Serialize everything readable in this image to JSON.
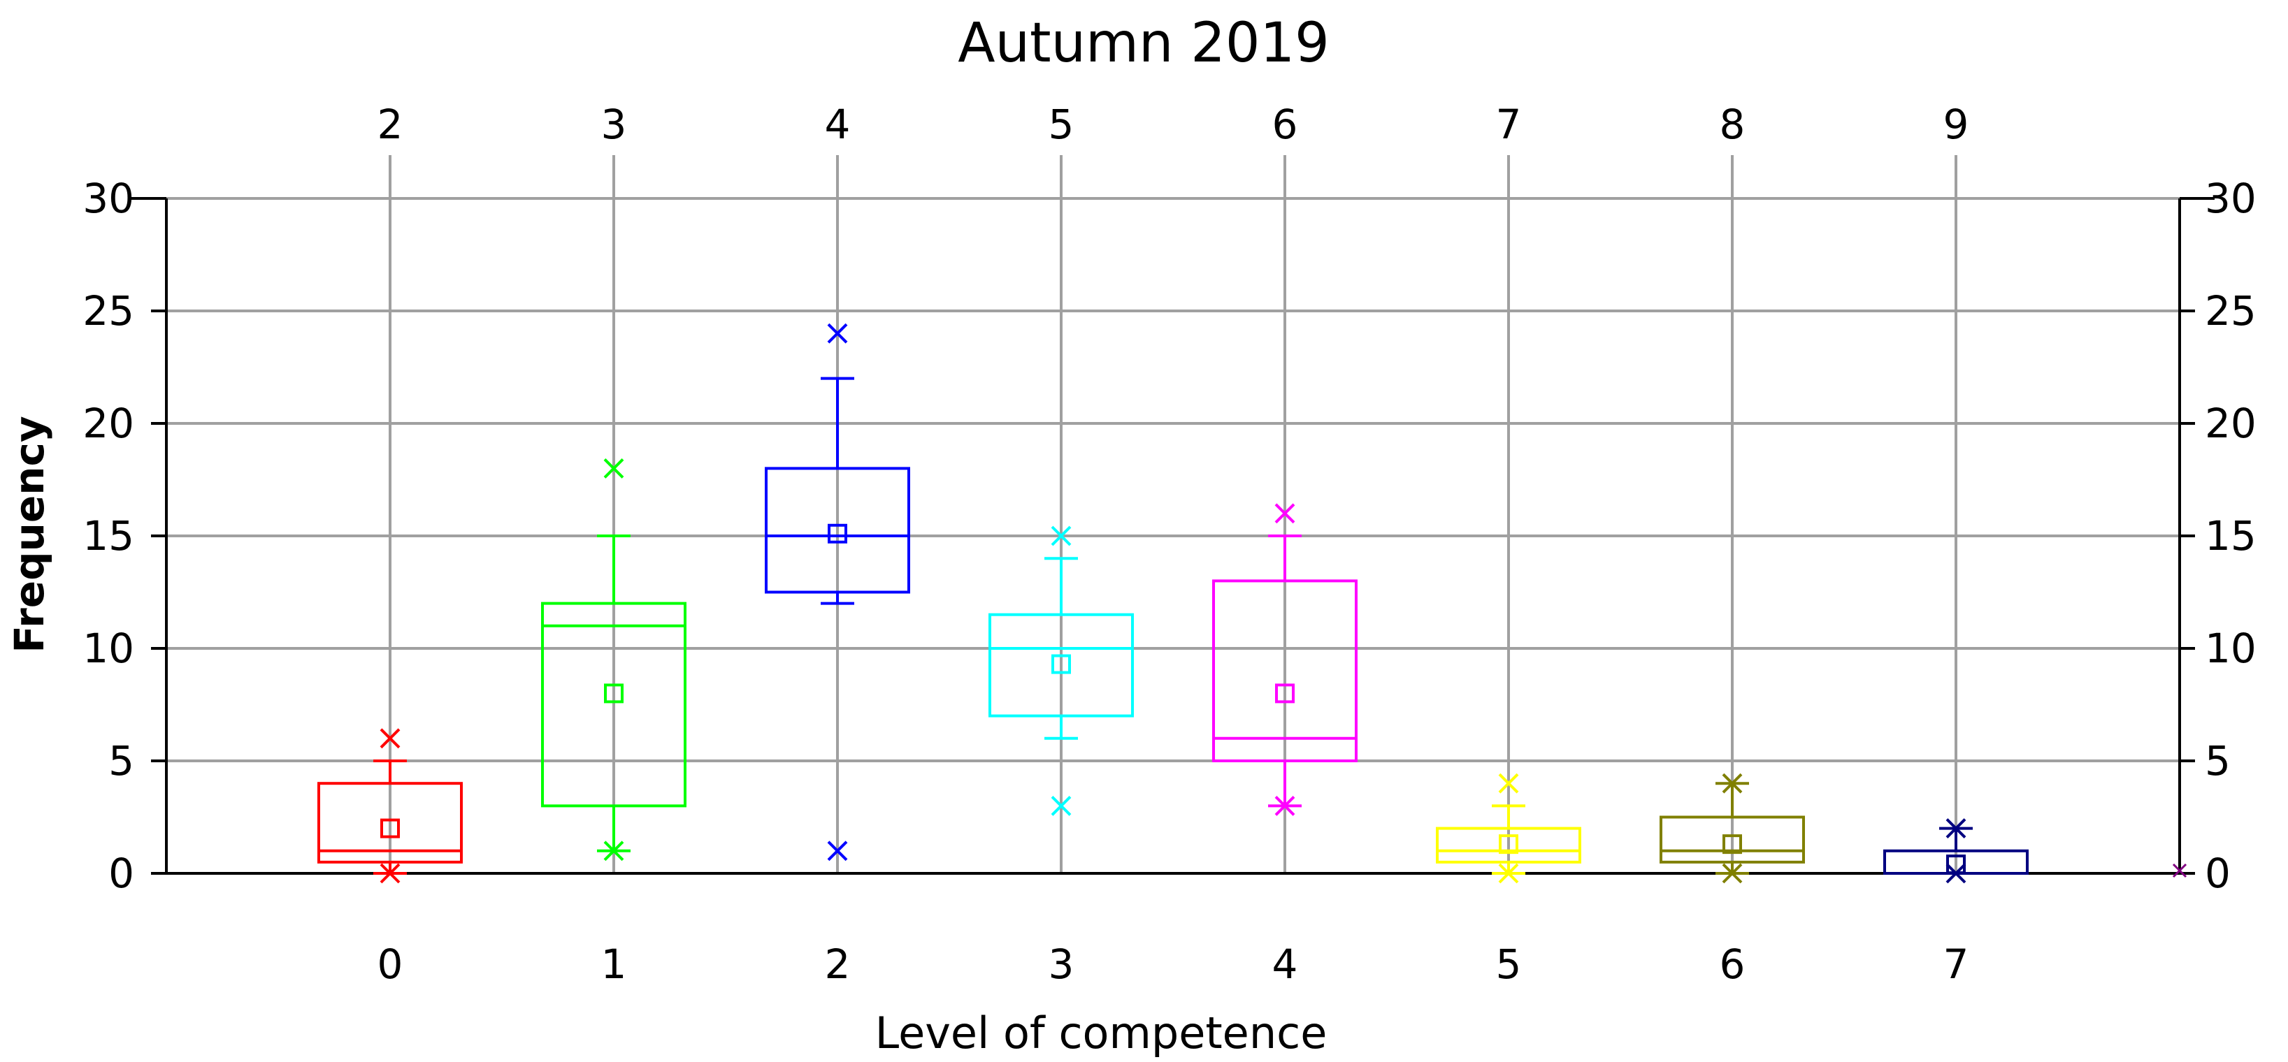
{
  "chart_data": {
    "type": "box",
    "title": "Autumn 2019",
    "xlabel": "Level of competence",
    "ylabel": "Frequency",
    "ylim": [
      0,
      30
    ],
    "xlim": [
      -1,
      8
    ],
    "yticks": [
      0,
      5,
      10,
      15,
      20,
      25,
      30
    ],
    "xticks_bottom": [
      "0",
      "1",
      "2",
      "3",
      "4",
      "5",
      "6",
      "7"
    ],
    "xticks_top": [
      "2",
      "3",
      "4",
      "5",
      "6",
      "7",
      "8",
      "9"
    ],
    "grid": true,
    "boxes": [
      {
        "x": 0,
        "color": "#ff0000",
        "q1": 0.5,
        "median": 1,
        "q3": 4,
        "whisker_low": 0,
        "whisker_high": 5,
        "mean": 2,
        "min": 0,
        "max": 6
      },
      {
        "x": 1,
        "color": "#00ff00",
        "q1": 3,
        "median": 11,
        "q3": 12,
        "whisker_low": 1,
        "whisker_high": 15,
        "mean": 8,
        "min": 1,
        "max": 18
      },
      {
        "x": 2,
        "color": "#0000ff",
        "q1": 12.5,
        "median": 15,
        "q3": 18,
        "whisker_low": 12,
        "whisker_high": 22,
        "mean": 15.1,
        "min": 1,
        "max": 24
      },
      {
        "x": 3,
        "color": "#00ffff",
        "q1": 7,
        "median": 10,
        "q3": 11.5,
        "whisker_low": 6,
        "whisker_high": 14,
        "mean": 9.3,
        "min": 3,
        "max": 15
      },
      {
        "x": 4,
        "color": "#ff00ff",
        "q1": 5,
        "median": 6,
        "q3": 13,
        "whisker_low": 3,
        "whisker_high": 15,
        "mean": 8,
        "min": 3,
        "max": 16
      },
      {
        "x": 5,
        "color": "#ffff00",
        "q1": 0.5,
        "median": 1,
        "q3": 2,
        "whisker_low": 0,
        "whisker_high": 3,
        "mean": 1.3,
        "min": 0,
        "max": 4
      },
      {
        "x": 6,
        "color": "#808000",
        "q1": 0.5,
        "median": 1,
        "q3": 2.5,
        "whisker_low": 0,
        "whisker_high": 4,
        "mean": 1.3,
        "min": 0,
        "max": 4
      },
      {
        "x": 7,
        "color": "#000080",
        "q1": 0,
        "median": 0,
        "q3": 1,
        "whisker_low": 0,
        "whisker_high": 2,
        "mean": 0.4,
        "min": 0,
        "max": 2
      }
    ],
    "extra_marker": {
      "x": 8,
      "y": 0,
      "color": "#800080"
    }
  }
}
